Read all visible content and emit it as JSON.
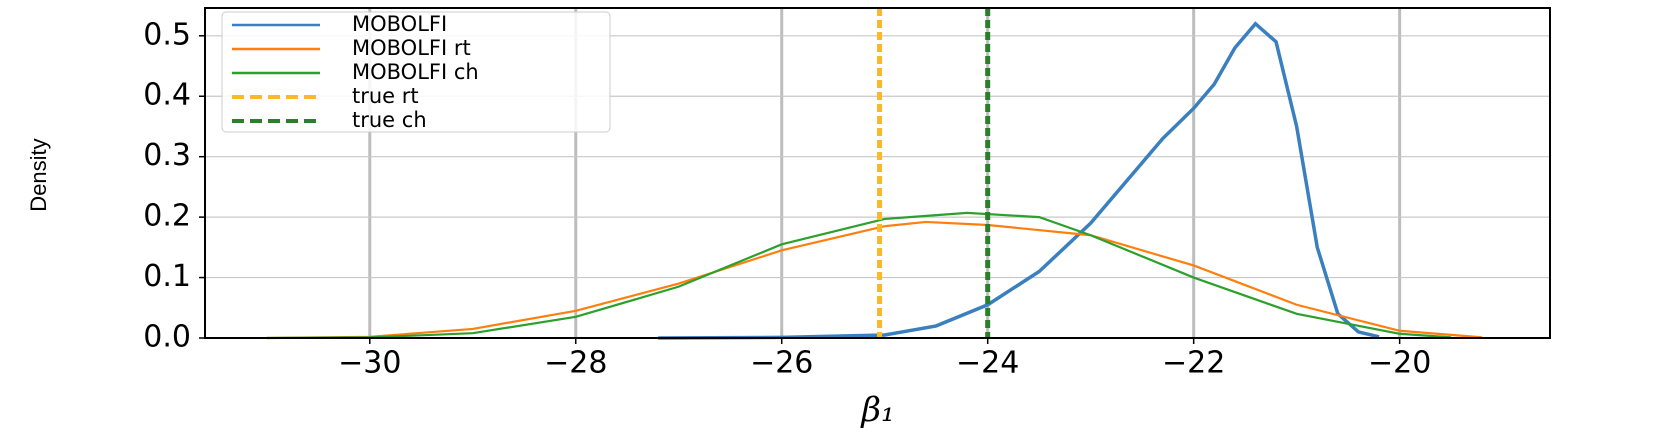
{
  "chart_data": {
    "type": "line",
    "x_label": "β₁",
    "y_label": "Density",
    "xlim": [
      -31.6,
      -18.54
    ],
    "ylim": [
      0,
      0.546
    ],
    "xticks": [
      {
        "value": -30,
        "label": "−30"
      },
      {
        "value": -28,
        "label": "−28"
      },
      {
        "value": -26,
        "label": "−26"
      },
      {
        "value": -24,
        "label": "−24"
      },
      {
        "value": -22,
        "label": "−22"
      },
      {
        "value": -20,
        "label": "−20"
      }
    ],
    "yticks": [
      {
        "value": 0,
        "label": "0.0"
      },
      0.1,
      0.2,
      0.3,
      0.4,
      0.5
    ],
    "grid": true,
    "legend": "upper left",
    "series": [
      {
        "name": "MOBOLFI",
        "color": "#3a80bf",
        "x": [
          -27.2,
          -26,
          -25,
          -24.5,
          -24,
          -23.5,
          -23,
          -22.5,
          -22.3,
          -22,
          -21.8,
          -21.6,
          -21.4,
          -21.2,
          -21,
          -20.8,
          -20.6,
          -20.4,
          -20.2
        ],
        "values": [
          0,
          0.001,
          0.005,
          0.02,
          0.055,
          0.11,
          0.19,
          0.29,
          0.33,
          0.38,
          0.42,
          0.48,
          0.52,
          0.49,
          0.35,
          0.15,
          0.04,
          0.01,
          0.002
        ]
      },
      {
        "name": "MOBOLFI rt",
        "color": "#ff7f0e",
        "x": [
          -31,
          -30,
          -29,
          -28,
          -27,
          -26,
          -25,
          -24.6,
          -24,
          -23,
          -22,
          -21,
          -20,
          -19.2
        ],
        "values": [
          0,
          0.002,
          0.015,
          0.045,
          0.09,
          0.145,
          0.185,
          0.192,
          0.187,
          0.17,
          0.12,
          0.055,
          0.012,
          0.001
        ]
      },
      {
        "name": "MOBOLFI ch",
        "color": "#2ca02c",
        "x": [
          -31,
          -30,
          -29,
          -28,
          -27,
          -26,
          -25,
          -24.2,
          -23.5,
          -23,
          -22,
          -21,
          -20,
          -19.5
        ],
        "values": [
          0,
          0.001,
          0.008,
          0.035,
          0.085,
          0.155,
          0.197,
          0.207,
          0.2,
          0.17,
          0.1,
          0.04,
          0.007,
          0.001
        ]
      }
    ],
    "vlines": [
      {
        "name": "true rt",
        "color": "#fbb829",
        "x": -25.05
      },
      {
        "name": "true ch",
        "color": "#2a7f2a",
        "x": -24
      }
    ]
  }
}
